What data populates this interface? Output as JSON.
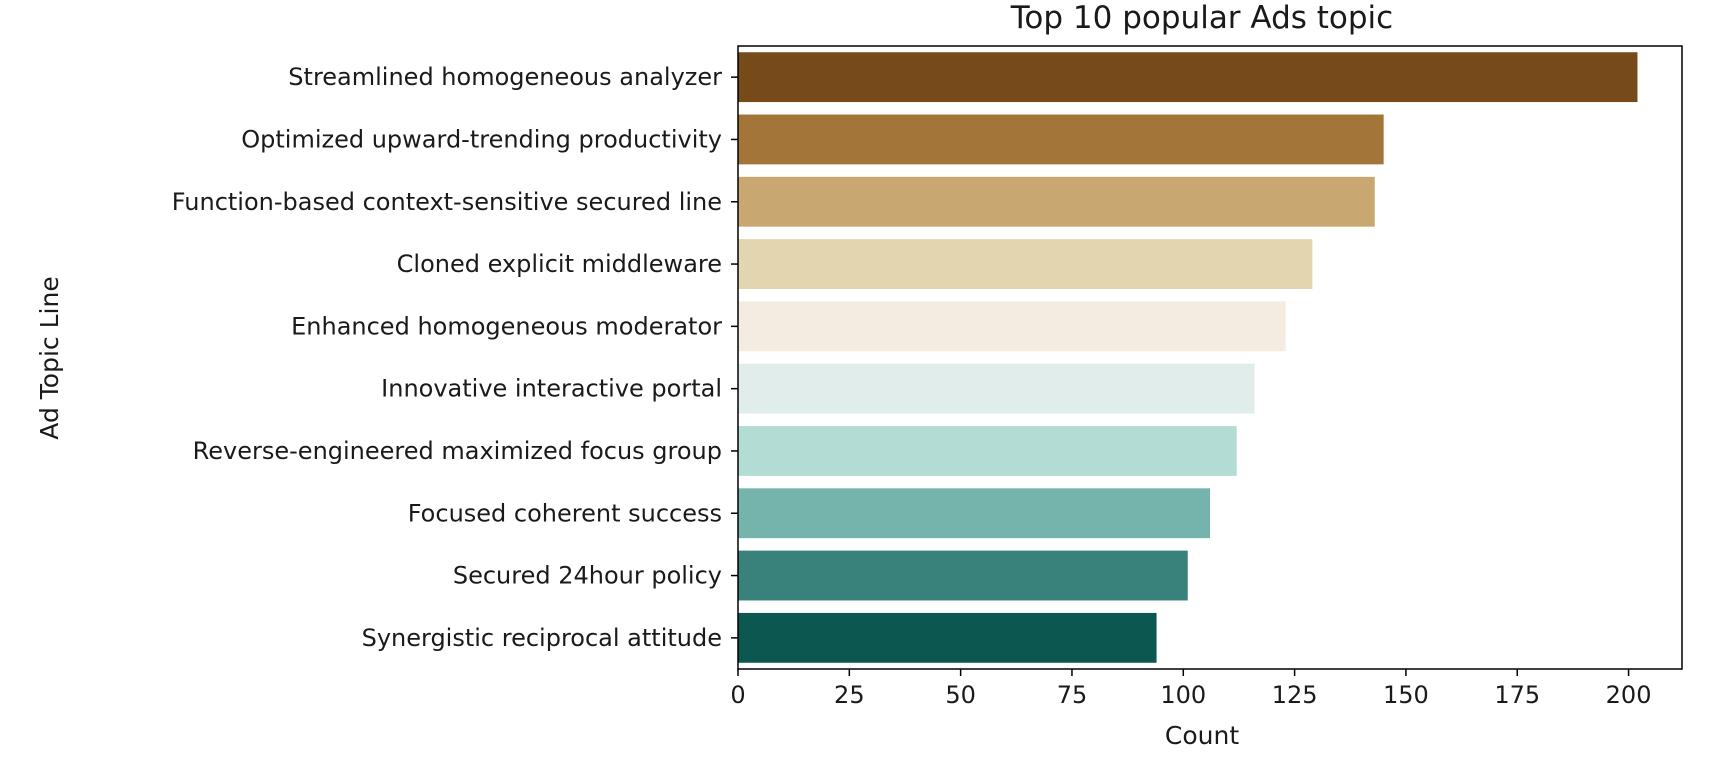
{
  "chart_data": {
    "type": "bar",
    "orientation": "horizontal",
    "title": "Top 10 popular Ads topic",
    "xlabel": "Count",
    "ylabel": "Ad Topic Line",
    "categories": [
      "Streamlined homogeneous analyzer",
      "Optimized upward-trending productivity",
      "Function-based context-sensitive secured line",
      "Cloned explicit middleware",
      "Enhanced homogeneous moderator",
      "Innovative interactive portal",
      "Reverse-engineered maximized focus group",
      "Focused coherent success",
      "Secured 24hour policy",
      "Synergistic reciprocal attitude"
    ],
    "values": [
      202,
      145,
      143,
      129,
      123,
      116,
      112,
      106,
      101,
      94
    ],
    "colors": [
      "#774a19",
      "#a47539",
      "#c8a870",
      "#e4d5b1",
      "#f4ece0",
      "#e0edea",
      "#b3ddd4",
      "#75b4ac",
      "#38827b",
      "#0c5750"
    ],
    "xlim": [
      0,
      212
    ],
    "xticks": [
      "0",
      "25",
      "50",
      "75",
      "100",
      "125",
      "150",
      "175",
      "200"
    ],
    "grid": false,
    "legend": "none"
  }
}
